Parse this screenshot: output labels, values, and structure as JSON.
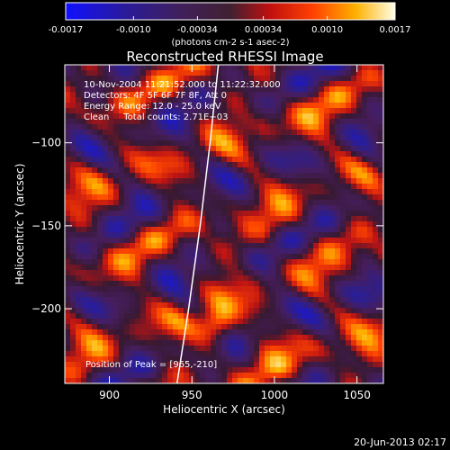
{
  "chart_data": {
    "type": "heatmap",
    "title": "Reconstructed RHESSI Image",
    "xlabel": "Heliocentric X (arcsec)",
    "ylabel": "Heliocentric Y (arcsec)",
    "xlim": [
      873,
      1066
    ],
    "ylim": [
      -245,
      -53
    ],
    "x_ticks": [
      900,
      950,
      1000,
      1050
    ],
    "y_ticks": [
      -100,
      -150,
      -200
    ],
    "colorbar": {
      "range": [
        -0.0017,
        0.0017
      ],
      "ticks": [
        "-0.0017",
        "-0.0010",
        "-0.00034",
        "0.00034",
        "0.0010",
        "0.0017"
      ],
      "unit_label": "(photons cm-2 s-1 asec-2)",
      "colormap": "blue-purple-red-yellow-white"
    },
    "annotations": {
      "time_range": "10-Nov-2004 11:21:52.000 to 11:22:32.000",
      "detectors": "Detectors: 4F 5F 6F 7F 8F, Att 0",
      "energy_range": "Energy Range: 12.0 - 25.0 keV",
      "clean_info": "Clean     Total counts: 2.71E+03",
      "peak_position": "Position of Peak = [965,-210]"
    },
    "peak": {
      "x": 965,
      "y": -210
    },
    "limb_curve": [
      [
        941,
        -245
      ],
      [
        948,
        -200
      ],
      [
        955,
        -150
      ],
      [
        961,
        -100
      ],
      [
        966,
        -53
      ]
    ],
    "footer_date": "20-Jun-2013 02:17"
  }
}
